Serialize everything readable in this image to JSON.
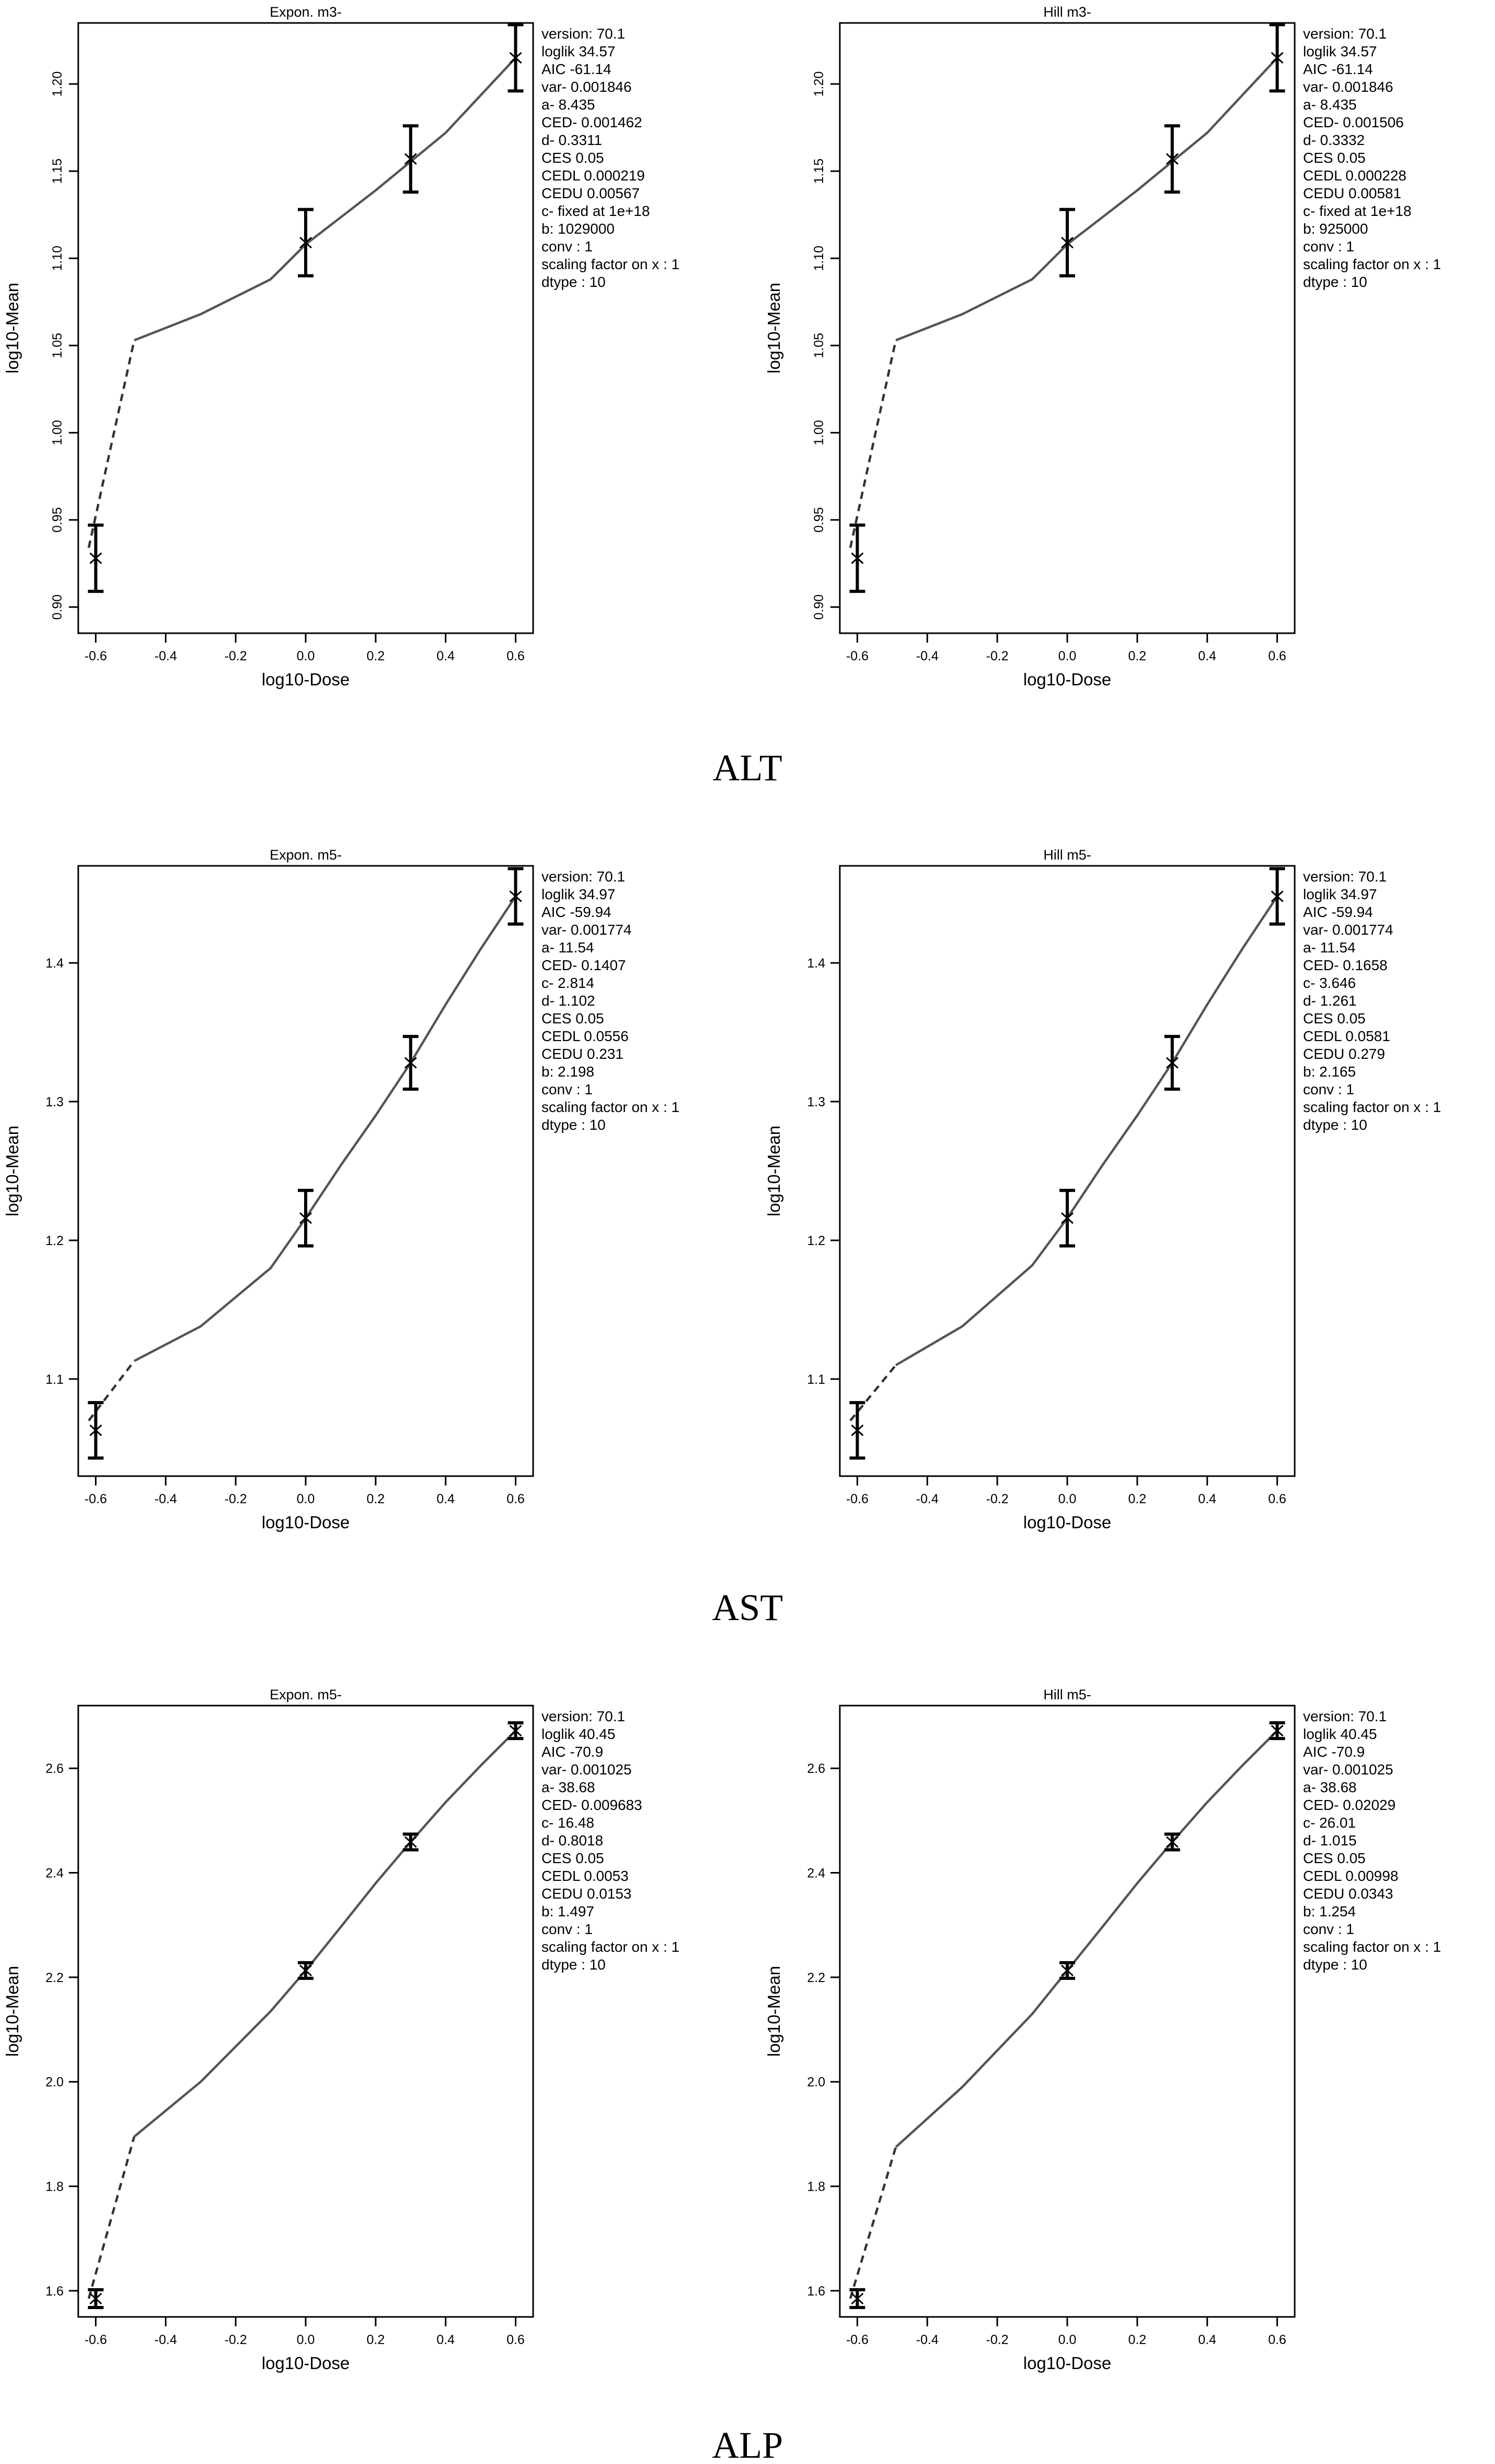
{
  "chart_data": [
    {
      "type": "line",
      "panel": "ALT Expon. m3-",
      "group": "ALT",
      "title": "Expon. m3-",
      "xlabel": "log10-Dose",
      "ylabel": "log10-Mean",
      "xlim": [
        -0.65,
        0.65
      ],
      "ylim": [
        0.885,
        1.235
      ],
      "xticks": [
        -0.6,
        -0.4,
        -0.2,
        0.0,
        0.2,
        0.4,
        0.6
      ],
      "xtick_labels": [
        "-0.6",
        "-0.4",
        "-0.2",
        "0.0",
        "0.2",
        "0.4",
        "0.6"
      ],
      "yticks": [
        0.9,
        0.95,
        1.0,
        1.05,
        1.1,
        1.15,
        1.2
      ],
      "ytick_labels": [
        "0.90",
        "0.95",
        "1.00",
        "1.05",
        "1.10",
        "1.15",
        "1.20"
      ],
      "ytick_rotated": true,
      "points": [
        {
          "x": -0.6,
          "y": 0.928,
          "lo": 0.909,
          "hi": 0.947
        },
        {
          "x": 0.0,
          "y": 1.109,
          "lo": 1.09,
          "hi": 1.128
        },
        {
          "x": 0.3,
          "y": 1.157,
          "lo": 1.138,
          "hi": 1.176
        },
        {
          "x": 0.6,
          "y": 1.215,
          "lo": 1.196,
          "hi": 1.234
        }
      ],
      "fit_dashed": [
        [
          -0.62,
          0.934
        ],
        [
          -0.49,
          1.053
        ]
      ],
      "fit_solid": [
        [
          -0.49,
          1.053
        ],
        [
          -0.3,
          1.068
        ],
        [
          -0.1,
          1.088
        ],
        [
          0.0,
          1.108
        ],
        [
          0.2,
          1.139
        ],
        [
          0.4,
          1.172
        ],
        [
          0.6,
          1.215
        ]
      ],
      "info": [
        "version: 70.1",
        "loglik   34.57",
        "AIC   -61.14",
        "var-   0.001846",
        "a-   8.435",
        "CED-   0.001462",
        "d-   0.3311",
        "CES   0.05",
        "CEDL   0.000219",
        "CEDU   0.00567",
        "c-  fixed at 1e+18",
        "b:  1029000",
        "conv : 1",
        "scaling factor on x : 1",
        "dtype :  10"
      ]
    },
    {
      "type": "line",
      "panel": "ALT Hill m3-",
      "group": "ALT",
      "title": "Hill m3-",
      "xlabel": "log10-Dose",
      "ylabel": "log10-Mean",
      "xlim": [
        -0.65,
        0.65
      ],
      "ylim": [
        0.885,
        1.235
      ],
      "xticks": [
        -0.6,
        -0.4,
        -0.2,
        0.0,
        0.2,
        0.4,
        0.6
      ],
      "xtick_labels": [
        "-0.6",
        "-0.4",
        "-0.2",
        "0.0",
        "0.2",
        "0.4",
        "0.6"
      ],
      "yticks": [
        0.9,
        0.95,
        1.0,
        1.05,
        1.1,
        1.15,
        1.2
      ],
      "ytick_labels": [
        "0.90",
        "0.95",
        "1.00",
        "1.05",
        "1.10",
        "1.15",
        "1.20"
      ],
      "ytick_rotated": true,
      "points": [
        {
          "x": -0.6,
          "y": 0.928,
          "lo": 0.909,
          "hi": 0.947
        },
        {
          "x": 0.0,
          "y": 1.109,
          "lo": 1.09,
          "hi": 1.128
        },
        {
          "x": 0.3,
          "y": 1.157,
          "lo": 1.138,
          "hi": 1.176
        },
        {
          "x": 0.6,
          "y": 1.215,
          "lo": 1.196,
          "hi": 1.234
        }
      ],
      "fit_dashed": [
        [
          -0.62,
          0.934
        ],
        [
          -0.49,
          1.053
        ]
      ],
      "fit_solid": [
        [
          -0.49,
          1.053
        ],
        [
          -0.3,
          1.068
        ],
        [
          -0.1,
          1.088
        ],
        [
          0.0,
          1.108
        ],
        [
          0.2,
          1.139
        ],
        [
          0.4,
          1.172
        ],
        [
          0.6,
          1.215
        ]
      ],
      "info": [
        "version: 70.1",
        "loglik   34.57",
        "AIC   -61.14",
        "var-   0.001846",
        "a-   8.435",
        "CED-   0.001506",
        "d-   0.3332",
        "CES   0.05",
        "CEDL   0.000228",
        "CEDU   0.00581",
        "c-  fixed at 1e+18",
        "b:  925000",
        "conv : 1",
        "scaling factor on x : 1",
        "dtype :  10"
      ]
    },
    {
      "type": "line",
      "panel": "AST Expon. m5-",
      "group": "AST",
      "title": "Expon. m5-",
      "xlabel": "log10-Dose",
      "ylabel": "log10-Mean",
      "xlim": [
        -0.65,
        0.65
      ],
      "ylim": [
        1.03,
        1.47
      ],
      "xticks": [
        -0.6,
        -0.4,
        -0.2,
        0.0,
        0.2,
        0.4,
        0.6
      ],
      "xtick_labels": [
        "-0.6",
        "-0.4",
        "-0.2",
        "0.0",
        "0.2",
        "0.4",
        "0.6"
      ],
      "yticks": [
        1.1,
        1.2,
        1.3,
        1.4
      ],
      "ytick_labels": [
        "1.1",
        "1.2",
        "1.3",
        "1.4"
      ],
      "ytick_rotated": false,
      "points": [
        {
          "x": -0.6,
          "y": 1.063,
          "lo": 1.043,
          "hi": 1.083
        },
        {
          "x": 0.0,
          "y": 1.216,
          "lo": 1.196,
          "hi": 1.236
        },
        {
          "x": 0.3,
          "y": 1.328,
          "lo": 1.309,
          "hi": 1.347
        },
        {
          "x": 0.6,
          "y": 1.448,
          "lo": 1.428,
          "hi": 1.468
        }
      ],
      "fit_dashed": [
        [
          -0.62,
          1.07
        ],
        [
          -0.49,
          1.113
        ]
      ],
      "fit_solid": [
        [
          -0.49,
          1.113
        ],
        [
          -0.3,
          1.138
        ],
        [
          -0.1,
          1.18
        ],
        [
          0.0,
          1.216
        ],
        [
          0.1,
          1.254
        ],
        [
          0.2,
          1.29
        ],
        [
          0.3,
          1.328
        ],
        [
          0.4,
          1.37
        ],
        [
          0.5,
          1.41
        ],
        [
          0.6,
          1.448
        ]
      ],
      "info": [
        "version: 70.1",
        "loglik   34.97",
        "AIC   -59.94",
        "var-   0.001774",
        "a-   11.54",
        "CED-   0.1407",
        "c-   2.814",
        "d-   1.102",
        "CES   0.05",
        "CEDL   0.0556",
        "CEDU   0.231",
        "b:  2.198",
        "conv : 1",
        "scaling factor on x : 1",
        "dtype :  10"
      ]
    },
    {
      "type": "line",
      "panel": "AST Hill m5-",
      "group": "AST",
      "title": "Hill m5-",
      "xlabel": "log10-Dose",
      "ylabel": "log10-Mean",
      "xlim": [
        -0.65,
        0.65
      ],
      "ylim": [
        1.03,
        1.47
      ],
      "xticks": [
        -0.6,
        -0.4,
        -0.2,
        0.0,
        0.2,
        0.4,
        0.6
      ],
      "xtick_labels": [
        "-0.6",
        "-0.4",
        "-0.2",
        "0.0",
        "0.2",
        "0.4",
        "0.6"
      ],
      "yticks": [
        1.1,
        1.2,
        1.3,
        1.4
      ],
      "ytick_labels": [
        "1.1",
        "1.2",
        "1.3",
        "1.4"
      ],
      "ytick_rotated": false,
      "points": [
        {
          "x": -0.6,
          "y": 1.063,
          "lo": 1.043,
          "hi": 1.083
        },
        {
          "x": 0.0,
          "y": 1.216,
          "lo": 1.196,
          "hi": 1.236
        },
        {
          "x": 0.3,
          "y": 1.328,
          "lo": 1.309,
          "hi": 1.347
        },
        {
          "x": 0.6,
          "y": 1.448,
          "lo": 1.428,
          "hi": 1.468
        }
      ],
      "fit_dashed": [
        [
          -0.62,
          1.07
        ],
        [
          -0.49,
          1.11
        ]
      ],
      "fit_solid": [
        [
          -0.49,
          1.11
        ],
        [
          -0.3,
          1.138
        ],
        [
          -0.1,
          1.182
        ],
        [
          0.0,
          1.216
        ],
        [
          0.1,
          1.254
        ],
        [
          0.2,
          1.29
        ],
        [
          0.3,
          1.328
        ],
        [
          0.4,
          1.37
        ],
        [
          0.5,
          1.41
        ],
        [
          0.6,
          1.448
        ]
      ],
      "info": [
        "version: 70.1",
        "loglik   34.97",
        "AIC   -59.94",
        "var-   0.001774",
        "a-   11.54",
        "CED-   0.1658",
        "c-   3.646",
        "d-   1.261",
        "CES   0.05",
        "CEDL   0.0581",
        "CEDU   0.279",
        "b:  2.165",
        "conv : 1",
        "scaling factor on x : 1",
        "dtype :  10"
      ]
    },
    {
      "type": "line",
      "panel": "ALP Expon. m5-",
      "group": "ALP",
      "title": "Expon. m5-",
      "xlabel": "log10-Dose",
      "ylabel": "log10-Mean",
      "xlim": [
        -0.65,
        0.65
      ],
      "ylim": [
        1.55,
        2.72
      ],
      "xticks": [
        -0.6,
        -0.4,
        -0.2,
        0.0,
        0.2,
        0.4,
        0.6
      ],
      "xtick_labels": [
        "-0.6",
        "-0.4",
        "-0.2",
        "0.0",
        "0.2",
        "0.4",
        "0.6"
      ],
      "yticks": [
        1.6,
        1.8,
        2.0,
        2.2,
        2.4,
        2.6
      ],
      "ytick_labels": [
        "1.6",
        "1.8",
        "2.0",
        "2.2",
        "2.4",
        "2.6"
      ],
      "ytick_rotated": false,
      "points": [
        {
          "x": -0.6,
          "y": 1.585,
          "lo": 1.568,
          "hi": 1.602
        },
        {
          "x": 0.0,
          "y": 2.213,
          "lo": 2.198,
          "hi": 2.228
        },
        {
          "x": 0.3,
          "y": 2.459,
          "lo": 2.444,
          "hi": 2.474
        },
        {
          "x": 0.6,
          "y": 2.672,
          "lo": 2.657,
          "hi": 2.687
        }
      ],
      "fit_dashed": [
        [
          -0.62,
          1.585
        ],
        [
          -0.49,
          1.895
        ]
      ],
      "fit_solid": [
        [
          -0.49,
          1.895
        ],
        [
          -0.3,
          2.0
        ],
        [
          -0.1,
          2.135
        ],
        [
          0.0,
          2.213
        ],
        [
          0.1,
          2.296
        ],
        [
          0.2,
          2.38
        ],
        [
          0.3,
          2.459
        ],
        [
          0.4,
          2.535
        ],
        [
          0.5,
          2.605
        ],
        [
          0.6,
          2.672
        ]
      ],
      "info": [
        "version: 70.1",
        "loglik   40.45",
        "AIC   -70.9",
        "var-   0.001025",
        "a-   38.68",
        "CED-   0.009683",
        "c-   16.48",
        "d-   0.8018",
        "CES   0.05",
        "CEDL   0.0053",
        "CEDU   0.0153",
        "b:  1.497",
        "conv : 1",
        "scaling factor on x : 1",
        "dtype :  10"
      ]
    },
    {
      "type": "line",
      "panel": "ALP Hill m5-",
      "group": "ALP",
      "title": "Hill m5-",
      "xlabel": "log10-Dose",
      "ylabel": "log10-Mean",
      "xlim": [
        -0.65,
        0.65
      ],
      "ylim": [
        1.55,
        2.72
      ],
      "xticks": [
        -0.6,
        -0.4,
        -0.2,
        0.0,
        0.2,
        0.4,
        0.6
      ],
      "xtick_labels": [
        "-0.6",
        "-0.4",
        "-0.2",
        "0.0",
        "0.2",
        "0.4",
        "0.6"
      ],
      "yticks": [
        1.6,
        1.8,
        2.0,
        2.2,
        2.4,
        2.6
      ],
      "ytick_labels": [
        "1.6",
        "1.8",
        "2.0",
        "2.2",
        "2.4",
        "2.6"
      ],
      "ytick_rotated": false,
      "points": [
        {
          "x": -0.6,
          "y": 1.585,
          "lo": 1.568,
          "hi": 1.602
        },
        {
          "x": 0.0,
          "y": 2.213,
          "lo": 2.198,
          "hi": 2.228
        },
        {
          "x": 0.3,
          "y": 2.459,
          "lo": 2.444,
          "hi": 2.474
        },
        {
          "x": 0.6,
          "y": 2.672,
          "lo": 2.657,
          "hi": 2.687
        }
      ],
      "fit_dashed": [
        [
          -0.62,
          1.585
        ],
        [
          -0.49,
          1.875
        ]
      ],
      "fit_solid": [
        [
          -0.49,
          1.875
        ],
        [
          -0.3,
          1.99
        ],
        [
          -0.1,
          2.13
        ],
        [
          0.0,
          2.213
        ],
        [
          0.1,
          2.296
        ],
        [
          0.2,
          2.38
        ],
        [
          0.3,
          2.459
        ],
        [
          0.4,
          2.535
        ],
        [
          0.5,
          2.605
        ],
        [
          0.6,
          2.672
        ]
      ],
      "info": [
        "version: 70.1",
        "loglik   40.45",
        "AIC   -70.9",
        "var-   0.001025",
        "a-   38.68",
        "CED-   0.02029",
        "c-   26.01",
        "d-   1.015",
        "CES   0.05",
        "CEDL   0.00998",
        "CEDU   0.0343",
        "b:  1.254",
        "conv : 1",
        "scaling factor on x : 1",
        "dtype :  10"
      ]
    }
  ],
  "captions": [
    "ALT",
    "AST",
    "ALP"
  ]
}
